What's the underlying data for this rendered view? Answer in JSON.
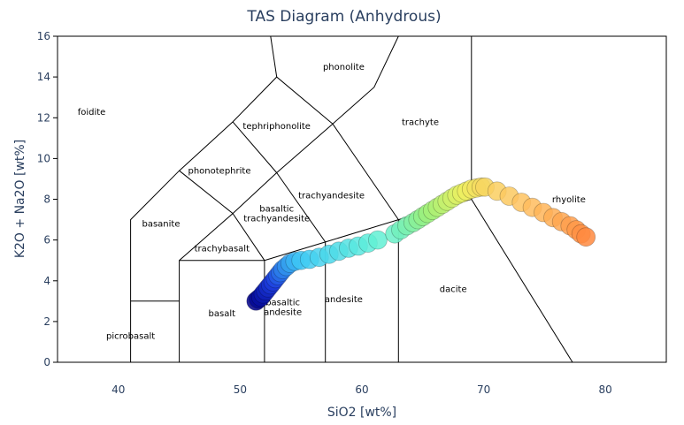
{
  "chart_data": {
    "type": "scatter",
    "title": "TAS Diagram (Anhydrous)",
    "xlabel": "SiO2 [wt%]",
    "ylabel": "K2O + Na2O [wt%]",
    "xlim": [
      35,
      85
    ],
    "ylim": [
      0,
      16
    ],
    "x_ticks": [
      40,
      50,
      60,
      70,
      80
    ],
    "y_ticks": [
      0,
      2,
      4,
      6,
      8,
      10,
      12,
      14,
      16
    ],
    "grid": false,
    "legend": "none",
    "colorscale": [
      "#00008b",
      "#1e40e0",
      "#3ec8f5",
      "#5ff0d8",
      "#9df07a",
      "#eef060",
      "#ffc060",
      "#ff8a40"
    ],
    "field_labels": [
      {
        "lines": [
          "foidite"
        ],
        "x": 37.8,
        "y": 12.3
      },
      {
        "lines": [
          "phonolite"
        ],
        "x": 58.5,
        "y": 14.5
      },
      {
        "lines": [
          "tephriphonolite"
        ],
        "x": 53,
        "y": 11.6
      },
      {
        "lines": [
          "phonotephrite"
        ],
        "x": 48.3,
        "y": 9.4
      },
      {
        "lines": [
          "trachyte"
        ],
        "x": 64.8,
        "y": 11.8
      },
      {
        "lines": [
          "trachyandesite"
        ],
        "x": 57.5,
        "y": 8.2
      },
      {
        "lines": [
          "basaltic",
          "trachyandesite"
        ],
        "x": 53.0,
        "y": 7.3
      },
      {
        "lines": [
          "basanite"
        ],
        "x": 43.5,
        "y": 6.8
      },
      {
        "lines": [
          "trachybasalt"
        ],
        "x": 48.5,
        "y": 5.6
      },
      {
        "lines": [
          "rhyolite"
        ],
        "x": 77,
        "y": 8.0
      },
      {
        "lines": [
          "basalt"
        ],
        "x": 48.5,
        "y": 2.4
      },
      {
        "lines": [
          "basaltic",
          "andesite"
        ],
        "x": 53.5,
        "y": 2.7
      },
      {
        "lines": [
          "andesite"
        ],
        "x": 58.5,
        "y": 3.1
      },
      {
        "lines": [
          "dacite"
        ],
        "x": 67.5,
        "y": 3.6
      },
      {
        "lines": [
          "picrobasalt"
        ],
        "x": 41.0,
        "y": 1.3
      }
    ],
    "field_boundaries": [
      [
        [
          41,
          0
        ],
        [
          41,
          7
        ],
        [
          45,
          9.4
        ],
        [
          49.4,
          11.8
        ],
        [
          53,
          14
        ],
        [
          57.6,
          11.7
        ],
        [
          61,
          13.5
        ],
        [
          63,
          16
        ]
      ],
      [
        [
          41,
          3
        ],
        [
          45,
          3
        ]
      ],
      [
        [
          45,
          0
        ],
        [
          45,
          5
        ],
        [
          49.4,
          7.3
        ],
        [
          53,
          9.3
        ],
        [
          57.6,
          11.7
        ]
      ],
      [
        [
          45,
          5
        ],
        [
          52,
          5
        ],
        [
          57,
          5.9
        ],
        [
          63,
          7
        ],
        [
          69,
          8
        ]
      ],
      [
        [
          52,
          0
        ],
        [
          52,
          5
        ],
        [
          49.4,
          7.3
        ]
      ],
      [
        [
          57,
          0
        ],
        [
          57,
          5.9
        ],
        [
          53,
          9.3
        ]
      ],
      [
        [
          63,
          0
        ],
        [
          63,
          7
        ],
        [
          57.6,
          11.7
        ]
      ],
      [
        [
          69,
          8
        ],
        [
          69,
          16
        ]
      ],
      [
        [
          69,
          8
        ],
        [
          77.3,
          0
        ]
      ],
      [
        [
          45,
          9.4
        ],
        [
          49.4,
          7.3
        ]
      ],
      [
        [
          49.4,
          11.8
        ],
        [
          53,
          9.3
        ]
      ],
      [
        [
          53,
          14
        ],
        [
          52.5,
          16
        ]
      ]
    ],
    "series": [
      {
        "x": [
          51.3,
          51.5,
          51.7,
          51.9,
          52.1,
          52.3,
          52.5,
          52.7,
          52.9,
          53.1,
          53.3,
          53.5,
          53.8,
          54.1,
          54.5,
          55.0,
          55.7,
          56.5,
          57.3,
          58.1,
          58.9,
          59.7,
          60.5,
          61.3,
          62.7,
          63.2,
          63.7,
          64.2,
          64.6,
          65.0,
          65.4,
          65.8,
          66.2,
          66.6,
          67.0,
          67.4,
          67.8,
          68.2,
          68.6,
          69.0,
          69.4,
          69.8,
          70.1,
          71.1,
          72.1,
          73.1,
          74.0,
          74.9,
          75.7,
          76.4,
          77.1,
          77.6,
          78.0,
          78.4
        ],
        "y": [
          3.0,
          3.1,
          3.2,
          3.35,
          3.5,
          3.65,
          3.8,
          3.95,
          4.1,
          4.25,
          4.4,
          4.55,
          4.7,
          4.85,
          4.95,
          5.0,
          5.05,
          5.15,
          5.3,
          5.45,
          5.6,
          5.7,
          5.85,
          6.0,
          6.3,
          6.5,
          6.7,
          6.85,
          7.0,
          7.15,
          7.3,
          7.45,
          7.6,
          7.75,
          7.9,
          8.05,
          8.2,
          8.3,
          8.4,
          8.5,
          8.55,
          8.6,
          8.6,
          8.4,
          8.15,
          7.85,
          7.6,
          7.35,
          7.1,
          6.9,
          6.7,
          6.5,
          6.3,
          6.15
        ]
      }
    ]
  }
}
